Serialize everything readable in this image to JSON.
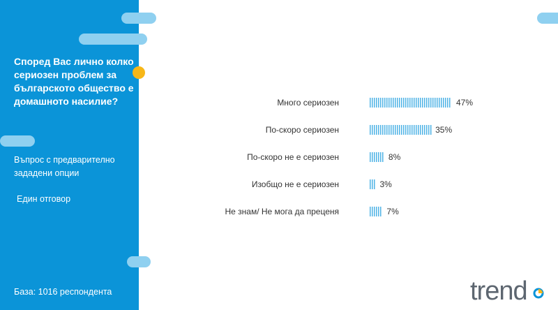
{
  "sidebar": {
    "question": "Според Вас лично колко сериозен проблем за българското общество е домашното насилие?",
    "question_type": "Въпрос с предварително зададени опции",
    "answer_mode": "Един отговор",
    "base": "База:  1016 респондента"
  },
  "logo": {
    "text": "trend"
  },
  "colors": {
    "sidebar_bg": "#0b94d8",
    "pill": "#8fd0f0",
    "dot": "#f7b718",
    "bar": "#4fb3e6",
    "text": "#333333",
    "logo_gray": "#5d6670"
  },
  "chart_data": {
    "type": "bar",
    "orientation": "horizontal",
    "categories": [
      "Много сериозен",
      "По-скоро сериозен",
      "По-скоро не е сериозен",
      "Изобщо не е сериозен",
      "Не знам/ Не мога да преценя"
    ],
    "values": [
      47,
      35,
      8,
      3,
      7
    ],
    "value_labels": [
      "47%",
      "35%",
      "8%",
      "3%",
      "7%"
    ],
    "unit": "%",
    "title": "",
    "xlabel": "",
    "ylabel": ""
  }
}
